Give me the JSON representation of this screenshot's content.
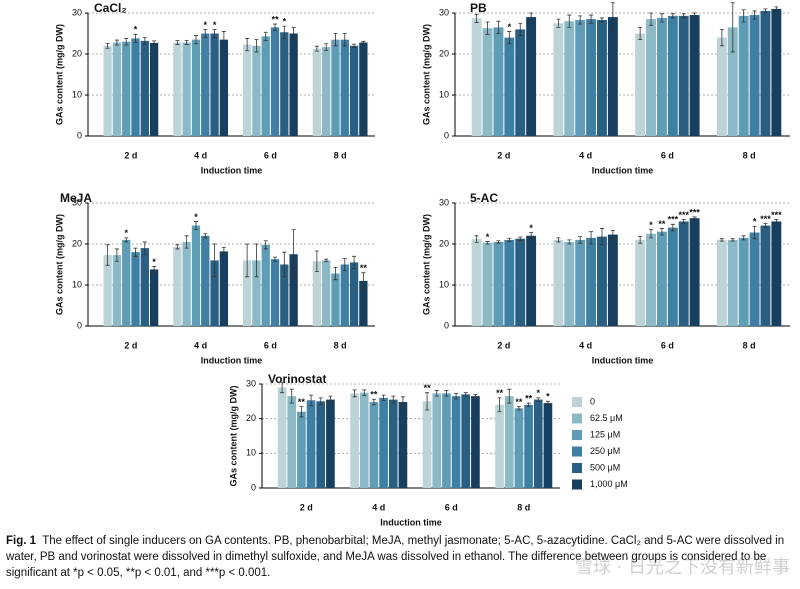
{
  "chart_data": [
    {
      "type": "bar",
      "title": "CaCl₂",
      "y_label": "GAs content (mg/g DW)",
      "x_label": "Induction time",
      "categories": [
        "2 d",
        "4 d",
        "6 d",
        "8 d"
      ],
      "ylim": [
        0,
        30
      ],
      "yticks": [
        0,
        10,
        20,
        30
      ],
      "grid": true,
      "series": [
        {
          "color": "#bcd4d7",
          "values": [
            22,
            22.8,
            22.3,
            21.3
          ],
          "errors": [
            0.6,
            0.5,
            1.5,
            0.6
          ],
          "stars": [
            null,
            null,
            null,
            null
          ]
        },
        {
          "color": "#8bb9c5",
          "values": [
            22.8,
            22.8,
            22,
            21.7
          ],
          "errors": [
            0.6,
            0.5,
            1.5,
            0.8
          ],
          "stars": [
            null,
            null,
            null,
            null
          ]
        },
        {
          "color": "#5f9db6",
          "values": [
            23,
            23.5,
            24.3,
            23.5
          ],
          "errors": [
            0.8,
            1,
            1,
            1.5
          ],
          "stars": [
            null,
            null,
            null,
            null
          ]
        },
        {
          "color": "#3f7fa3",
          "values": [
            23.8,
            25,
            26.5,
            23.5
          ],
          "errors": [
            1,
            1,
            0.8,
            1.5
          ],
          "stars": [
            "*",
            "*",
            "**",
            null
          ]
        },
        {
          "color": "#2a5f84",
          "values": [
            23.2,
            25,
            25.3,
            22
          ],
          "errors": [
            0.8,
            1,
            1.5,
            0.4
          ],
          "stars": [
            null,
            "*",
            "*",
            null
          ]
        },
        {
          "color": "#173f5f",
          "values": [
            22.7,
            23.5,
            25,
            22.8
          ],
          "errors": [
            0.5,
            2,
            1.5,
            0.3
          ],
          "stars": [
            null,
            null,
            null,
            null
          ]
        }
      ]
    },
    {
      "type": "bar",
      "title": "PB",
      "y_label": "GAs content (mg/g DW)",
      "x_label": "Induction time",
      "categories": [
        "2 d",
        "4 d",
        "6 d",
        "8 d"
      ],
      "ylim": [
        0,
        30
      ],
      "yticks": [
        0,
        10,
        20,
        30
      ],
      "grid": true,
      "series": [
        {
          "color": "#bcd4d7",
          "values": [
            28.7,
            27.5,
            25,
            24
          ],
          "errors": [
            1,
            1,
            1.5,
            2
          ],
          "stars": [
            null,
            null,
            null,
            null
          ]
        },
        {
          "color": "#8bb9c5",
          "values": [
            26.3,
            28,
            28.5,
            26.5
          ],
          "errors": [
            1.5,
            1.5,
            1.5,
            6
          ],
          "stars": [
            null,
            null,
            null,
            null
          ]
        },
        {
          "color": "#5f9db6",
          "values": [
            26.5,
            28.3,
            28.8,
            29.3
          ],
          "errors": [
            1.5,
            1,
            1,
            1.5
          ],
          "stars": [
            null,
            null,
            null,
            null
          ]
        },
        {
          "color": "#3f7fa3",
          "values": [
            24,
            28.5,
            29.3,
            29.5
          ],
          "errors": [
            1.5,
            1,
            0.5,
            1
          ],
          "stars": [
            "*",
            null,
            null,
            null
          ]
        },
        {
          "color": "#2a5f84",
          "values": [
            26,
            28.3,
            29.3,
            30.5
          ],
          "errors": [
            1.5,
            0.5,
            0.5,
            0.5
          ],
          "stars": [
            null,
            null,
            null,
            null
          ]
        },
        {
          "color": "#173f5f",
          "values": [
            29,
            29,
            29.5,
            31
          ],
          "errors": [
            1,
            3.5,
            0.5,
            0.5
          ],
          "stars": [
            null,
            null,
            null,
            null
          ]
        }
      ]
    },
    {
      "type": "bar",
      "title": "MeJA",
      "y_label": "GAs content (mg/g DW)",
      "x_label": "Induction time",
      "categories": [
        "2 d",
        "4 d",
        "6 d",
        "8 d"
      ],
      "ylim": [
        0,
        30
      ],
      "yticks": [
        0,
        10,
        20,
        30
      ],
      "grid": true,
      "series": [
        {
          "color": "#bcd4d7",
          "values": [
            17.3,
            19.3,
            16,
            15.8
          ],
          "errors": [
            2.5,
            0.5,
            4,
            2.5
          ],
          "stars": [
            null,
            null,
            null,
            null
          ]
        },
        {
          "color": "#8bb9c5",
          "values": [
            17.3,
            20.5,
            16,
            16
          ],
          "errors": [
            1.5,
            1.5,
            4,
            0.3
          ],
          "stars": [
            null,
            null,
            null,
            null
          ]
        },
        {
          "color": "#5f9db6",
          "values": [
            21,
            24.5,
            19.8,
            12.8
          ],
          "errors": [
            0.5,
            1,
            1,
            1.5
          ],
          "stars": [
            "*",
            "*",
            null,
            null
          ]
        },
        {
          "color": "#3f7fa3",
          "values": [
            18,
            22,
            16.3,
            15
          ],
          "errors": [
            1,
            0.5,
            0.5,
            1.5
          ],
          "stars": [
            null,
            null,
            null,
            null
          ]
        },
        {
          "color": "#2a5f84",
          "values": [
            19,
            16,
            15,
            15.5
          ],
          "errors": [
            1.5,
            4,
            3,
            1.5
          ],
          "stars": [
            null,
            null,
            null,
            null
          ]
        },
        {
          "color": "#173f5f",
          "values": [
            13.8,
            18.2,
            17.5,
            11
          ],
          "errors": [
            0.7,
            1,
            6,
            2
          ],
          "stars": [
            "*",
            null,
            null,
            "**"
          ]
        }
      ]
    },
    {
      "type": "bar",
      "title": "5-AC",
      "y_label": "GAs content (mg/g DW)",
      "x_label": "Induction time",
      "categories": [
        "2 d",
        "4 d",
        "6 d",
        "8 d"
      ],
      "ylim": [
        0,
        30
      ],
      "yticks": [
        0,
        10,
        20,
        30
      ],
      "grid": true,
      "series": [
        {
          "color": "#bcd4d7",
          "values": [
            21.2,
            21,
            21,
            21
          ],
          "errors": [
            0.8,
            0.5,
            0.8,
            0.3
          ],
          "stars": [
            null,
            null,
            null,
            null
          ]
        },
        {
          "color": "#8bb9c5",
          "values": [
            20.3,
            20.5,
            22.5,
            21
          ],
          "errors": [
            0.3,
            0.5,
            1,
            0.3
          ],
          "stars": [
            "*",
            null,
            "*",
            null
          ]
        },
        {
          "color": "#5f9db6",
          "values": [
            20.5,
            21,
            23,
            21.5
          ],
          "errors": [
            0.3,
            0.8,
            0.8,
            0.5
          ],
          "stars": [
            null,
            null,
            "**",
            null
          ]
        },
        {
          "color": "#3f7fa3",
          "values": [
            21,
            21.5,
            24,
            22.8
          ],
          "errors": [
            0.4,
            1.5,
            0.8,
            1.5
          ],
          "stars": [
            null,
            null,
            "***",
            "*"
          ]
        },
        {
          "color": "#2a5f84",
          "values": [
            21.3,
            21.8,
            25.5,
            24.5
          ],
          "errors": [
            0.4,
            2,
            0.5,
            0.5
          ],
          "stars": [
            null,
            null,
            "***",
            "***"
          ]
        },
        {
          "color": "#173f5f",
          "values": [
            22,
            22.3,
            26.3,
            25.5
          ],
          "errors": [
            0.8,
            1,
            0.3,
            0.5
          ],
          "stars": [
            "*",
            null,
            "***",
            "***"
          ]
        }
      ]
    },
    {
      "type": "bar",
      "title": "Vorinostat",
      "y_label": "GAs content (mg/g DW)",
      "x_label": "Induction time",
      "categories": [
        "2 d",
        "4 d",
        "6 d",
        "8 d"
      ],
      "ylim": [
        0,
        30
      ],
      "yticks": [
        0,
        10,
        20,
        30
      ],
      "grid": true,
      "series": [
        {
          "color": "#bcd4d7",
          "values": [
            29,
            27.3,
            25,
            24
          ],
          "errors": [
            1.5,
            1,
            2.5,
            2
          ],
          "stars": [
            null,
            null,
            "**",
            "**"
          ]
        },
        {
          "color": "#8bb9c5",
          "values": [
            26.5,
            27.5,
            27.3,
            26.5
          ],
          "errors": [
            2,
            0.8,
            0.8,
            2
          ],
          "stars": [
            null,
            null,
            null,
            null
          ]
        },
        {
          "color": "#5f9db6",
          "values": [
            22,
            24.8,
            27.3,
            23
          ],
          "errors": [
            1.5,
            0.8,
            0.8,
            0.5
          ],
          "stars": [
            "**",
            "**",
            null,
            "**"
          ]
        },
        {
          "color": "#3f7fa3",
          "values": [
            25.3,
            26,
            26.5,
            24
          ],
          "errors": [
            1.5,
            0.8,
            0.8,
            0.5
          ],
          "stars": [
            null,
            null,
            null,
            "**"
          ]
        },
        {
          "color": "#2a5f84",
          "values": [
            25,
            25.5,
            27,
            25.5
          ],
          "errors": [
            1,
            1,
            0.5,
            0.5
          ],
          "stars": [
            null,
            null,
            null,
            "*"
          ]
        },
        {
          "color": "#173f5f",
          "values": [
            25.5,
            24.8,
            26.5,
            24.5
          ],
          "errors": [
            1,
            1.5,
            0.5,
            0.5
          ],
          "stars": [
            null,
            null,
            null,
            "*"
          ]
        }
      ]
    }
  ],
  "legend": [
    "0",
    "62.5 μM",
    "125 μM",
    "250 μM",
    "500 μM",
    "1,000 μM"
  ],
  "caption": {
    "label": "Fig. 1",
    "text": "The effect of single inducers on GA contents. PB, phenobarbital; MeJA, methyl jasmonate; 5-AC, 5-azacytidine. CaCl₂ and 5-AC were dissolved in water, PB and vorinostat were dissolved in dimethyl sulfoxide, and MeJA was dissolved in ethanol. The difference between groups is considered to be significant at *p < 0.05, **p < 0.01, and ***p < 0.001."
  },
  "watermark": "雪球 · 日光之下没有新鲜事"
}
